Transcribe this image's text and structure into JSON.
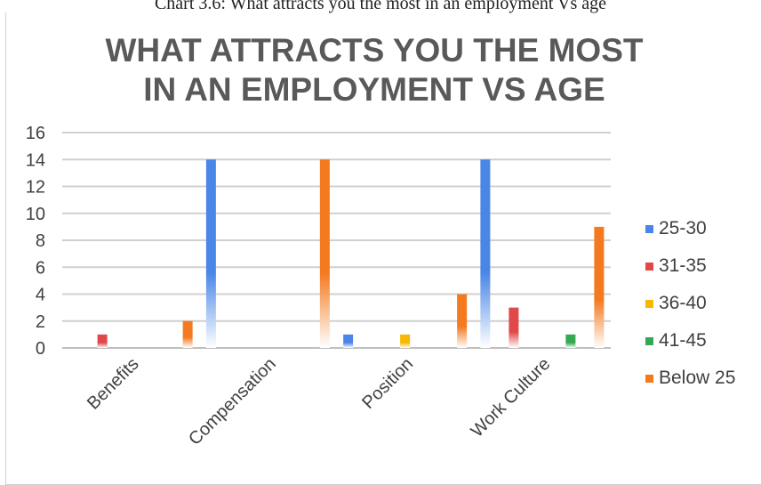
{
  "caption": "Chart 3.6: What attracts you the most in an employment Vs age",
  "chart_data": {
    "type": "bar",
    "title": "WHAT ATTRACTS YOU THE MOST IN AN EMPLOYMENT VS AGE",
    "title_lines": [
      "WHAT ATTRACTS YOU THE MOST",
      "IN AN EMPLOYMENT VS AGE"
    ],
    "categories": [
      "Benefits",
      "Compensation",
      "Position",
      "Work Culture"
    ],
    "series": [
      {
        "name": "25-30",
        "color": "#4a86e8",
        "values": [
          0,
          14,
          1,
          14
        ]
      },
      {
        "name": "31-35",
        "color": "#e0484a",
        "values": [
          1,
          0,
          0,
          3
        ]
      },
      {
        "name": "36-40",
        "color": "#f6b800",
        "values": [
          0,
          0,
          1,
          0
        ]
      },
      {
        "name": "41-45",
        "color": "#34a853",
        "values": [
          0,
          0,
          0,
          1
        ]
      },
      {
        "name": "Below 25",
        "color": "#f47a1f",
        "values": [
          2,
          14,
          4,
          9
        ]
      }
    ],
    "ylim": [
      0,
      16
    ],
    "yticks": [
      "0",
      "2",
      "4",
      "6",
      "8",
      "10",
      "12",
      "14",
      "16"
    ],
    "grid": true,
    "legend_position": "right"
  }
}
